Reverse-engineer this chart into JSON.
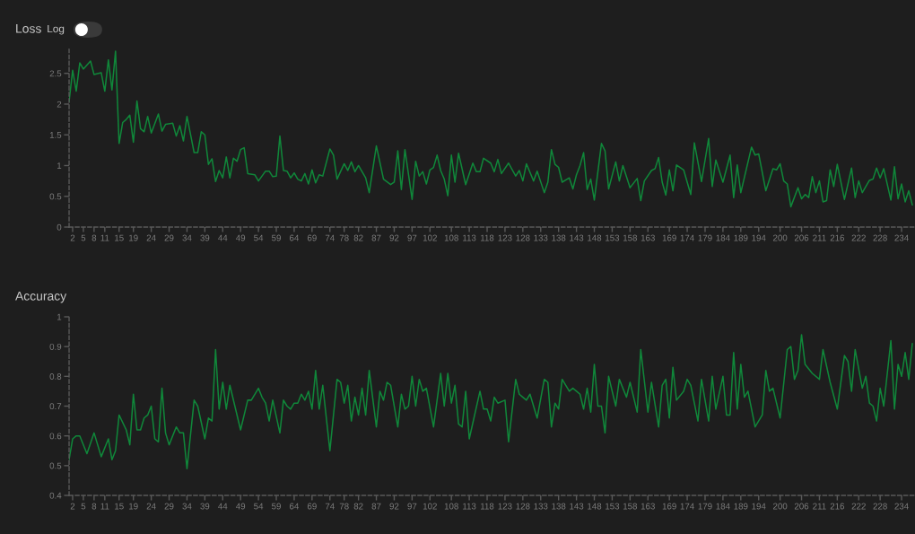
{
  "chart_data": [
    {
      "type": "line",
      "title": "Loss",
      "annotations": [
        "Log"
      ],
      "xlim": [
        1,
        237.5
      ],
      "xticks": [
        2,
        5,
        8,
        11,
        15,
        19,
        24,
        29,
        34,
        39,
        44,
        49,
        54,
        59,
        64,
        69,
        74,
        78,
        82,
        87,
        92,
        97,
        102,
        108,
        113,
        118,
        123,
        128,
        133,
        138,
        143,
        148,
        153,
        158,
        163,
        169,
        174,
        179,
        184,
        189,
        194,
        200,
        206,
        211,
        216,
        222,
        228,
        234
      ],
      "ylim": [
        0,
        2.89
      ],
      "yticks": [
        0,
        0.5,
        1,
        1.5,
        2,
        2.5
      ],
      "grid": false,
      "line_style": "solid",
      "series": [
        {
          "color": "#10873a",
          "x": [
            1,
            2,
            3,
            4,
            5,
            7,
            8,
            10,
            11,
            12,
            13,
            14,
            15,
            16,
            17,
            18,
            19,
            20,
            21,
            22,
            23,
            24,
            26,
            27,
            28,
            30,
            31,
            32,
            33,
            34,
            36,
            37,
            38,
            39,
            40,
            41,
            42,
            43,
            44,
            45,
            46,
            47,
            48,
            49,
            50,
            51,
            53,
            54,
            56,
            57,
            58,
            59,
            60,
            61,
            62,
            63,
            64,
            65,
            66,
            67,
            68,
            69,
            70,
            71,
            72,
            74,
            75,
            76,
            78,
            79,
            80,
            81,
            82,
            84,
            85,
            87,
            89,
            91,
            92,
            93,
            94,
            95,
            97,
            98,
            99,
            100,
            101,
            102,
            103,
            104,
            105,
            106,
            107,
            108,
            109,
            110,
            112,
            114,
            115,
            116,
            117,
            119,
            120,
            121,
            122,
            124,
            126,
            127,
            128,
            129,
            131,
            132,
            134,
            135,
            136,
            137,
            138,
            139,
            141,
            142,
            143,
            144,
            145,
            146,
            147,
            148,
            150,
            151,
            152,
            154,
            155,
            156,
            158,
            160,
            161,
            162,
            164,
            165,
            166,
            167,
            168,
            169,
            170,
            171,
            173,
            175,
            176,
            178,
            180,
            181,
            182,
            184,
            186,
            187,
            188,
            189,
            192,
            193,
            194,
            196,
            198,
            199,
            200,
            201,
            202,
            203,
            205,
            206,
            207,
            208,
            209,
            210,
            211,
            212,
            213,
            214,
            215,
            216,
            218,
            220,
            221,
            222,
            223,
            225,
            226,
            227,
            228,
            229,
            231,
            232,
            233,
            234,
            235,
            236,
            237
          ],
          "values": [
            2.04,
            2.55,
            2.21,
            2.67,
            2.57,
            2.7,
            2.48,
            2.51,
            2.21,
            2.72,
            2.23,
            2.86,
            1.36,
            1.7,
            1.75,
            1.82,
            1.38,
            2.05,
            1.6,
            1.55,
            1.8,
            1.53,
            1.84,
            1.56,
            1.67,
            1.69,
            1.48,
            1.65,
            1.4,
            1.8,
            1.21,
            1.21,
            1.55,
            1.5,
            1.02,
            1.11,
            0.74,
            0.92,
            0.8,
            1.14,
            0.8,
            1.12,
            1.07,
            1.26,
            1.29,
            0.87,
            0.85,
            0.75,
            0.91,
            0.91,
            0.82,
            0.83,
            1.48,
            0.92,
            0.91,
            0.8,
            0.88,
            0.78,
            0.75,
            0.87,
            0.7,
            0.93,
            0.72,
            0.85,
            0.83,
            1.27,
            1.17,
            0.78,
            1.03,
            0.92,
            1.06,
            0.9,
            1.0,
            0.8,
            0.56,
            1.32,
            0.78,
            0.69,
            0.73,
            1.24,
            0.61,
            1.26,
            0.45,
            1.07,
            0.83,
            0.9,
            0.7,
            0.93,
            0.97,
            1.17,
            0.92,
            0.78,
            0.51,
            1.17,
            0.73,
            1.2,
            0.69,
            1.04,
            0.9,
            0.9,
            1.12,
            1.04,
            0.9,
            1.1,
            0.87,
            1.04,
            0.83,
            0.92,
            0.75,
            1.03,
            0.75,
            0.91,
            0.56,
            0.73,
            1.26,
            1.02,
            0.97,
            0.73,
            0.8,
            0.62,
            0.85,
            1.0,
            1.21,
            0.61,
            0.78,
            0.44,
            1.36,
            1.24,
            0.62,
            1.06,
            0.75,
            1.0,
            0.64,
            0.79,
            0.43,
            0.75,
            0.92,
            0.95,
            1.13,
            0.73,
            0.52,
            0.93,
            0.59,
            1.01,
            0.93,
            0.53,
            1.37,
            0.74,
            1.44,
            0.66,
            1.09,
            0.73,
            1.17,
            0.48,
            1.01,
            0.56,
            1.3,
            1.17,
            1.19,
            0.59,
            0.95,
            0.93,
            1.03,
            0.75,
            0.7,
            0.33,
            0.64,
            0.46,
            0.53,
            0.48,
            0.82,
            0.56,
            0.75,
            0.41,
            0.43,
            0.93,
            0.66,
            1.02,
            0.45,
            0.96,
            0.48,
            0.75,
            0.56,
            0.76,
            0.78,
            0.96,
            0.8,
            0.95,
            0.44,
            0.98,
            0.46,
            0.7,
            0.41,
            0.59,
            0.36
          ]
        }
      ]
    },
    {
      "type": "line",
      "title": "Accuracy",
      "xlim": [
        1,
        237.5
      ],
      "xticks": [
        2,
        5,
        8,
        11,
        15,
        19,
        24,
        29,
        34,
        39,
        44,
        49,
        54,
        59,
        64,
        69,
        74,
        78,
        82,
        87,
        92,
        97,
        102,
        108,
        113,
        118,
        123,
        128,
        133,
        138,
        143,
        148,
        153,
        158,
        163,
        169,
        174,
        179,
        184,
        189,
        194,
        200,
        206,
        211,
        216,
        222,
        228,
        234
      ],
      "ylim": [
        0.4,
        1
      ],
      "yticks": [
        0.4,
        0.5,
        0.6,
        0.7,
        0.8,
        0.9,
        1
      ],
      "grid": false,
      "line_style": "solid",
      "series": [
        {
          "color": "#10873a",
          "x": [
            1,
            2,
            3,
            4,
            6,
            8,
            10,
            12,
            13,
            14,
            15,
            17,
            18,
            19,
            20,
            21,
            22,
            23,
            24,
            25,
            26,
            27,
            28,
            29,
            31,
            32,
            33,
            34,
            36,
            37,
            39,
            40,
            41,
            42,
            43,
            44,
            45,
            46,
            49,
            51,
            52,
            54,
            55,
            56,
            57,
            58,
            60,
            61,
            62,
            63,
            64,
            65,
            66,
            67,
            68,
            69,
            70,
            71,
            72,
            74,
            76,
            77,
            78,
            79,
            80,
            81,
            82,
            83,
            84,
            85,
            87,
            88,
            89,
            90,
            91,
            93,
            94,
            95,
            96,
            97,
            98,
            99,
            100,
            101,
            103,
            105,
            106,
            107,
            108,
            109,
            110,
            111,
            112,
            113,
            116,
            117,
            118,
            119,
            120,
            121,
            123,
            124,
            126,
            127,
            128,
            129,
            130,
            132,
            134,
            135,
            136,
            137,
            138,
            139,
            141,
            142,
            143,
            144,
            145,
            146,
            147,
            148,
            149,
            150,
            151,
            152,
            154,
            155,
            157,
            158,
            160,
            161,
            163,
            164,
            166,
            167,
            168,
            169,
            170,
            171,
            173,
            174,
            175,
            177,
            178,
            180,
            181,
            182,
            184,
            185,
            186,
            187,
            188,
            189,
            190,
            191,
            193,
            195,
            196,
            197,
            198,
            200,
            202,
            203,
            204,
            205,
            206,
            207,
            209,
            211,
            212,
            214,
            216,
            218,
            219,
            220,
            221,
            223,
            224,
            225,
            226,
            227,
            228,
            229,
            231,
            232,
            233,
            234,
            235,
            236,
            237
          ],
          "values": [
            0.52,
            0.59,
            0.6,
            0.6,
            0.54,
            0.61,
            0.53,
            0.59,
            0.52,
            0.55,
            0.67,
            0.62,
            0.57,
            0.74,
            0.62,
            0.62,
            0.66,
            0.67,
            0.7,
            0.59,
            0.58,
            0.76,
            0.61,
            0.57,
            0.63,
            0.61,
            0.61,
            0.49,
            0.72,
            0.7,
            0.59,
            0.66,
            0.65,
            0.89,
            0.69,
            0.78,
            0.69,
            0.77,
            0.62,
            0.72,
            0.72,
            0.76,
            0.73,
            0.71,
            0.65,
            0.72,
            0.61,
            0.72,
            0.7,
            0.69,
            0.71,
            0.71,
            0.74,
            0.72,
            0.75,
            0.69,
            0.82,
            0.69,
            0.77,
            0.55,
            0.79,
            0.78,
            0.71,
            0.77,
            0.65,
            0.73,
            0.67,
            0.76,
            0.67,
            0.82,
            0.63,
            0.75,
            0.72,
            0.78,
            0.77,
            0.63,
            0.74,
            0.69,
            0.7,
            0.8,
            0.7,
            0.79,
            0.75,
            0.76,
            0.63,
            0.81,
            0.7,
            0.81,
            0.71,
            0.77,
            0.64,
            0.63,
            0.75,
            0.59,
            0.75,
            0.69,
            0.69,
            0.65,
            0.73,
            0.71,
            0.72,
            0.58,
            0.79,
            0.74,
            0.73,
            0.72,
            0.74,
            0.66,
            0.79,
            0.78,
            0.63,
            0.71,
            0.69,
            0.79,
            0.75,
            0.76,
            0.75,
            0.74,
            0.69,
            0.76,
            0.68,
            0.84,
            0.7,
            0.7,
            0.61,
            0.8,
            0.7,
            0.79,
            0.73,
            0.78,
            0.68,
            0.89,
            0.68,
            0.78,
            0.63,
            0.77,
            0.79,
            0.66,
            0.83,
            0.72,
            0.75,
            0.79,
            0.77,
            0.65,
            0.79,
            0.65,
            0.8,
            0.69,
            0.8,
            0.67,
            0.67,
            0.88,
            0.69,
            0.84,
            0.73,
            0.75,
            0.63,
            0.67,
            0.82,
            0.75,
            0.76,
            0.66,
            0.89,
            0.9,
            0.79,
            0.82,
            0.94,
            0.84,
            0.81,
            0.79,
            0.89,
            0.78,
            0.69,
            0.87,
            0.85,
            0.75,
            0.89,
            0.76,
            0.8,
            0.71,
            0.7,
            0.65,
            0.76,
            0.7,
            0.92,
            0.69,
            0.84,
            0.8,
            0.88,
            0.79,
            0.91
          ]
        }
      ]
    }
  ]
}
